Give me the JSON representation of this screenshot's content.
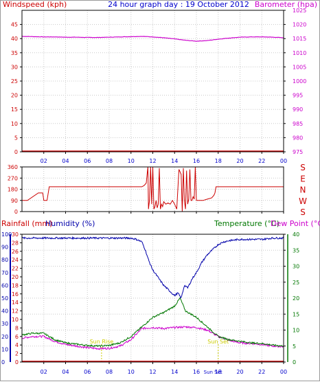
{
  "colors": {
    "wind": "#cc0000",
    "baro": "#cc00cc",
    "title": "#0000cc",
    "rain": "#cc0000",
    "humidity": "#0000aa",
    "temperature": "#007700",
    "dewpoint": "#cc00cc",
    "sun": "#cccc00",
    "grid": "#c8c8c8",
    "axis": "#000000"
  },
  "chart_data": [
    {
      "type": "line",
      "title": "24 hour graph day : 19 October 2012",
      "ylabel_left": "Windspeed (kph)",
      "ylabel_right": "Barometer (hpa)",
      "x_ticks": [
        "02",
        "04",
        "06",
        "08",
        "10",
        "12",
        "14",
        "16",
        "18",
        "20",
        "22",
        "00"
      ],
      "y_left_ticks": [
        "0",
        "5",
        "10",
        "15",
        "20",
        "25",
        "30",
        "35",
        "40",
        "45"
      ],
      "y_right_ticks": [
        "975",
        "980",
        "985",
        "990",
        "995",
        "1000",
        "1005",
        "1010",
        "1015",
        "1020",
        "1025"
      ],
      "y_left_range": [
        0,
        50
      ],
      "y_right_range": [
        975,
        1025
      ],
      "x_range": [
        0,
        24
      ],
      "series": [
        {
          "key": "barometer",
          "axis": "right",
          "x": [
            0,
            1,
            2,
            3,
            4,
            5,
            6,
            7,
            8,
            9,
            10,
            11,
            12,
            13,
            14,
            15,
            16,
            17,
            18,
            19,
            20,
            21,
            22,
            23,
            24
          ],
          "y": [
            1015.8,
            1015.7,
            1015.6,
            1015.6,
            1015.5,
            1015.5,
            1015.4,
            1015.4,
            1015.5,
            1015.6,
            1015.7,
            1015.8,
            1015.6,
            1015.3,
            1014.9,
            1014.4,
            1014.1,
            1014.3,
            1014.8,
            1015.2,
            1015.5,
            1015.6,
            1015.6,
            1015.5,
            1015.3
          ]
        },
        {
          "key": "windspeed",
          "axis": "left",
          "x": [
            0,
            24
          ],
          "y": [
            0,
            0
          ]
        }
      ]
    },
    {
      "type": "line",
      "ylabel_left_ticks": [
        "0",
        "90",
        "180",
        "270",
        "360"
      ],
      "y_right_labels": [
        "S",
        "E",
        "N",
        "W",
        "S"
      ],
      "y_range": [
        0,
        360
      ],
      "x_range": [
        0,
        24
      ],
      "series": [
        {
          "key": "wind_direction",
          "x": [
            0,
            0.5,
            1.5,
            1.9,
            2.0,
            2.3,
            2.5,
            3.0,
            4.5,
            6.0,
            8.0,
            10.0,
            11.0,
            11.2,
            11.4,
            11.5,
            11.55,
            11.6,
            11.7,
            11.8,
            11.9,
            12.0,
            12.1,
            12.2,
            12.3,
            12.4,
            12.5,
            12.6,
            12.7,
            12.8,
            12.9,
            13.0,
            13.2,
            13.4,
            13.6,
            13.8,
            14.0,
            14.2,
            14.4,
            14.6,
            14.7,
            14.8,
            14.9,
            15.0,
            15.1,
            15.2,
            15.3,
            15.4,
            15.5,
            15.6,
            15.7,
            15.8,
            15.9,
            16.0,
            16.1,
            16.2,
            16.4,
            16.6,
            17.0,
            17.4,
            17.6,
            17.7,
            17.8,
            18.0,
            19.0,
            20.0,
            21.0,
            22.0,
            23.0,
            24.0
          ],
          "y": [
            90,
            90,
            150,
            150,
            90,
            90,
            200,
            200,
            200,
            200,
            200,
            200,
            200,
            210,
            230,
            320,
            360,
            20,
            90,
            360,
            60,
            360,
            20,
            40,
            90,
            30,
            60,
            350,
            20,
            60,
            40,
            80,
            60,
            70,
            60,
            90,
            60,
            20,
            340,
            300,
            0,
            350,
            90,
            20,
            330,
            60,
            100,
            340,
            90,
            90,
            120,
            100,
            360,
            90,
            90,
            90,
            90,
            90,
            100,
            110,
            130,
            150,
            200,
            200,
            200,
            200,
            200,
            200,
            200,
            200
          ]
        }
      ]
    },
    {
      "type": "line",
      "ylabel_left": "Rainfall (mm)",
      "ylabel_left2": "Humidity (%)",
      "ylabel_right": "Temperature (°C)",
      "ylabel_right2": "Dew Point (°C)",
      "hum_ticks": [
        "0",
        "10",
        "20",
        "30",
        "40",
        "50",
        "60",
        "70",
        "80",
        "90",
        "100"
      ],
      "rain_ticks": [
        "0",
        "2",
        "4",
        "6",
        "8",
        "10",
        "12",
        "14",
        "16",
        "18",
        "20",
        "22",
        "24",
        "26",
        "28",
        "30"
      ],
      "temp_ticks": [
        "0",
        "5",
        "10",
        "15",
        "20",
        "25",
        "30",
        "35",
        "40"
      ],
      "x_ticks": [
        "02",
        "04",
        "06",
        "08",
        "10",
        "12",
        "14",
        "16",
        "18",
        "20",
        "22",
        "00"
      ],
      "x_range": [
        0,
        24
      ],
      "hum_range": [
        0,
        100
      ],
      "temp_range": [
        0,
        40
      ],
      "annotations": [
        {
          "text": "Sun Rise",
          "x": 7.3
        },
        {
          "text": "Sun Set",
          "x": 18.0
        },
        {
          "text": "Sun Set",
          "x": 17.9
        }
      ],
      "series": [
        {
          "key": "humidity",
          "axis": "hum",
          "x": [
            0,
            1,
            2,
            3,
            4,
            5,
            6,
            7,
            8,
            9,
            10,
            10.5,
            11.0,
            11.3,
            11.6,
            12.0,
            12.5,
            13.0,
            13.5,
            14.0,
            14.3,
            14.6,
            14.9,
            15.2,
            15.6,
            16.0,
            16.5,
            17.0,
            17.5,
            18.0,
            18.5,
            19.0,
            20.0,
            21.0,
            22.0,
            23.0,
            24.0
          ],
          "y": [
            97,
            97,
            97,
            97,
            97,
            97,
            97,
            97,
            97,
            97,
            97,
            96,
            94,
            88,
            80,
            72,
            66,
            60,
            56,
            52,
            54,
            50,
            60,
            58,
            65,
            70,
            78,
            84,
            88,
            92,
            94,
            95,
            96,
            96,
            96,
            97,
            97
          ]
        },
        {
          "key": "temperature",
          "axis": "temp",
          "x": [
            0,
            1,
            2,
            3,
            4,
            5,
            6,
            7,
            8,
            9,
            10,
            11,
            12,
            13,
            14,
            14.5,
            15,
            16,
            17,
            18,
            19,
            20,
            21,
            22,
            23,
            24
          ],
          "y": [
            8.5,
            9,
            9,
            7,
            6,
            5.6,
            5.2,
            5,
            5.2,
            6,
            8,
            11,
            14,
            15.5,
            17.5,
            20,
            16,
            14,
            11,
            8,
            7,
            6.5,
            6,
            5.8,
            5.3,
            5
          ],
          "noisy": true
        },
        {
          "key": "dew_point",
          "axis": "temp",
          "x": [
            0,
            1,
            2,
            3,
            4,
            5,
            6,
            7,
            8,
            9,
            10,
            11,
            12,
            13,
            14,
            15,
            16,
            17,
            18,
            19,
            20,
            21,
            22,
            23,
            24
          ],
          "y": [
            7.5,
            8,
            8,
            6.5,
            5.5,
            5,
            4.5,
            4.2,
            4.3,
            5,
            7,
            10.5,
            10.8,
            10.5,
            10.8,
            11,
            10.8,
            10,
            8,
            6.8,
            6,
            5.8,
            5.5,
            5,
            4.8
          ],
          "noisy": true
        },
        {
          "key": "rainfall",
          "axis": "rain",
          "x": [
            0,
            24
          ],
          "y": [
            0,
            0
          ]
        }
      ]
    }
  ]
}
